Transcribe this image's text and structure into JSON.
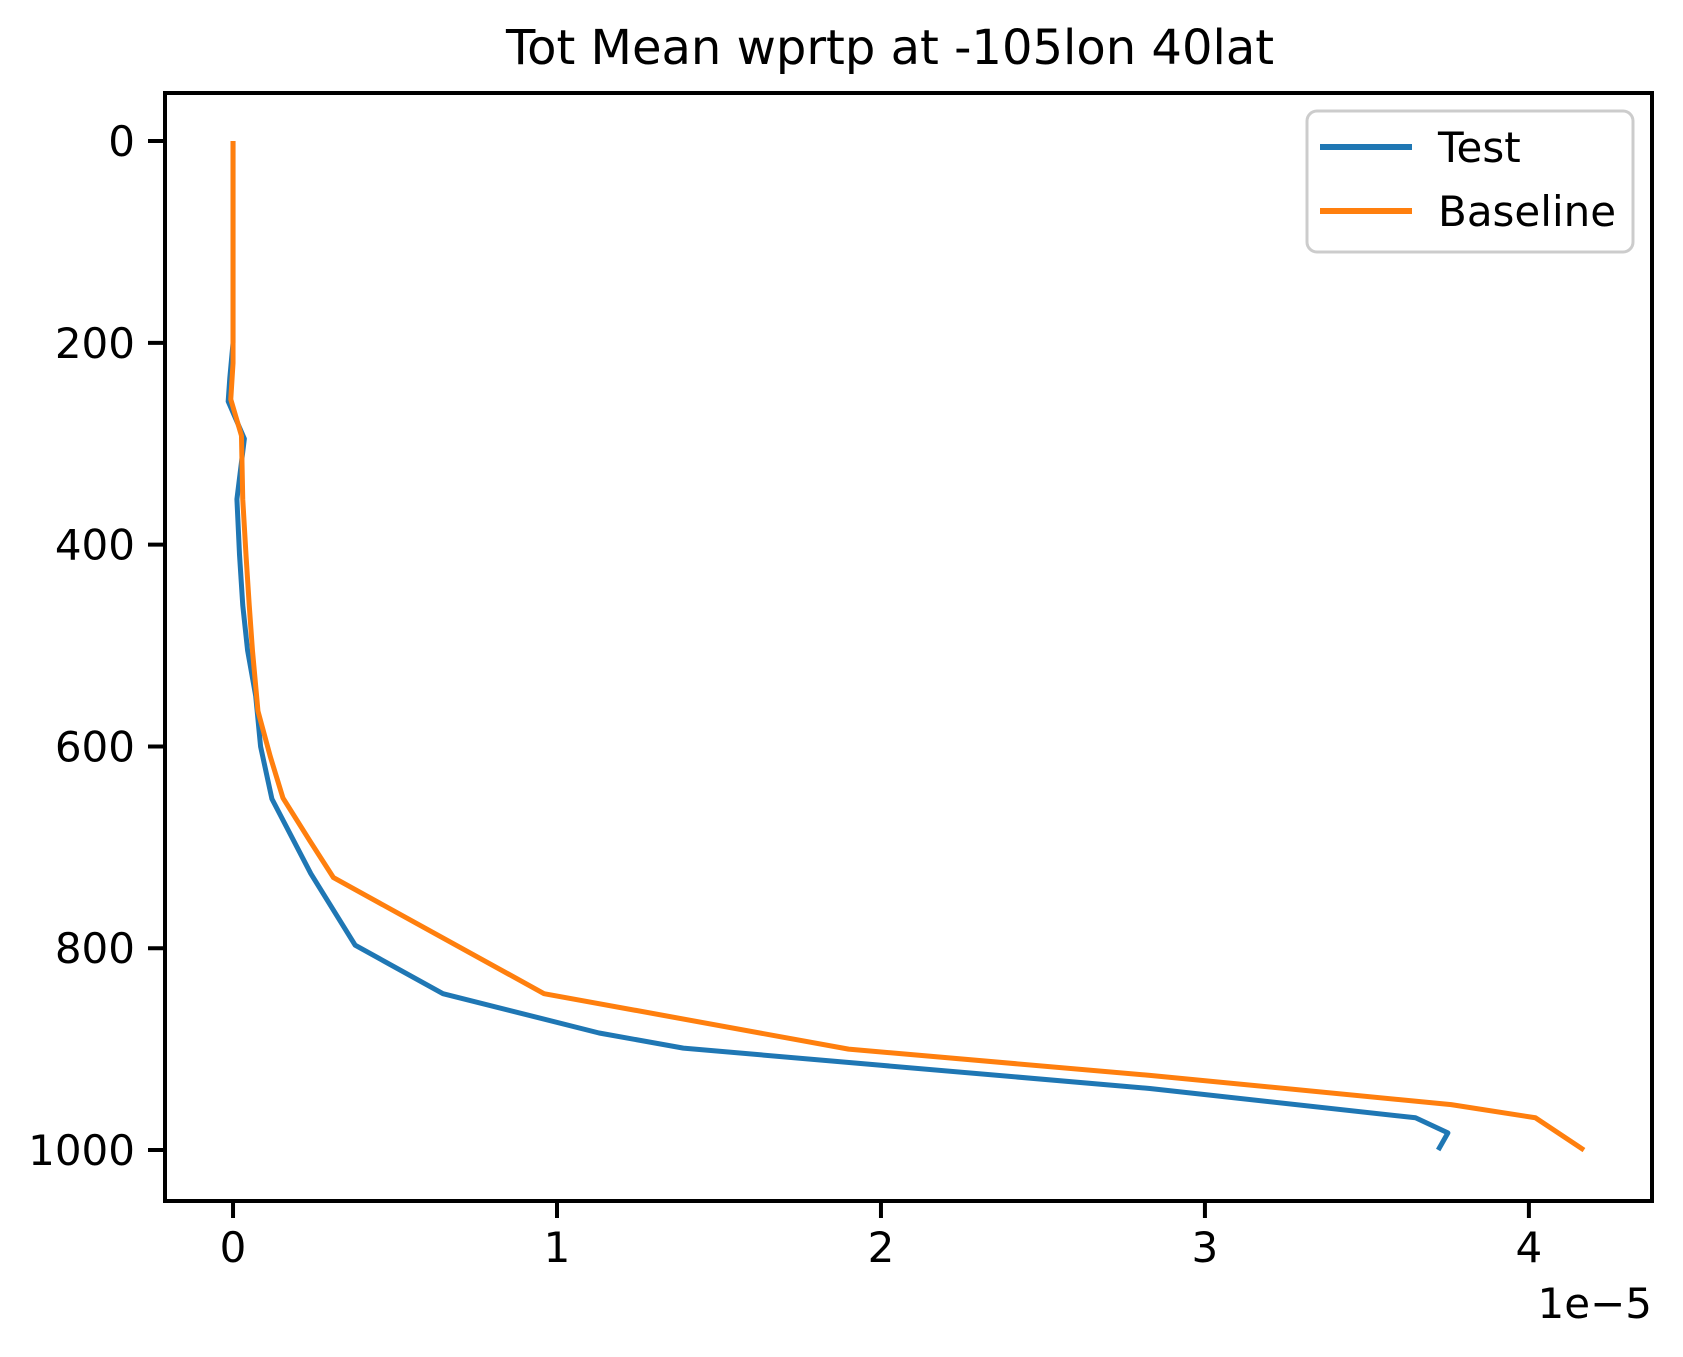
{
  "figure": {
    "background": "#ffffff"
  },
  "chart_data": {
    "type": "line",
    "title": "Tot Mean wprtp at -105lon 40lat",
    "xlabel": "",
    "ylabel": "",
    "x_offset_label": "1e−5",
    "x_value_scale": "1e-5",
    "grid": false,
    "legend_position": "upper right",
    "y_axis_inverted": true,
    "x_ticks": [
      0,
      1,
      2,
      3,
      4
    ],
    "x_tick_labels": [
      "0",
      "1",
      "2",
      "3",
      "4"
    ],
    "y_ticks": [
      0,
      200,
      400,
      600,
      800,
      1000
    ],
    "y_tick_labels": [
      "0",
      "200",
      "400",
      "600",
      "800",
      "1000"
    ],
    "xlim": [
      -0.21,
      4.38
    ],
    "ylim_top": -47.6,
    "ylim_bottom": 1050.5,
    "series": [
      {
        "name": "Test",
        "color": "#1f77b4",
        "points": [
          [
            0.0,
            0
          ],
          [
            0.0,
            100
          ],
          [
            0.0,
            200
          ],
          [
            -0.01,
            235
          ],
          [
            -0.015,
            258
          ],
          [
            0.035,
            295
          ],
          [
            0.012,
            355
          ],
          [
            0.02,
            410
          ],
          [
            0.03,
            460
          ],
          [
            0.045,
            505
          ],
          [
            0.07,
            550
          ],
          [
            0.085,
            600
          ],
          [
            0.12,
            652
          ],
          [
            0.24,
            726
          ],
          [
            0.377,
            797
          ],
          [
            0.648,
            845
          ],
          [
            1.13,
            884
          ],
          [
            1.39,
            899
          ],
          [
            2.0,
            916
          ],
          [
            2.83,
            939
          ],
          [
            3.65,
            968
          ],
          [
            3.75,
            983
          ],
          [
            3.72,
            1000
          ]
        ]
      },
      {
        "name": "Baseline",
        "color": "#ff7f0e",
        "points": [
          [
            0.0,
            0
          ],
          [
            0.0,
            100
          ],
          [
            0.0,
            220
          ],
          [
            -0.007,
            256
          ],
          [
            0.026,
            292
          ],
          [
            0.03,
            355
          ],
          [
            0.04,
            410
          ],
          [
            0.05,
            460
          ],
          [
            0.06,
            505
          ],
          [
            0.077,
            565
          ],
          [
            0.115,
            610
          ],
          [
            0.154,
            651
          ],
          [
            0.238,
            694
          ],
          [
            0.31,
            730
          ],
          [
            0.96,
            845
          ],
          [
            1.9,
            900
          ],
          [
            2.83,
            926
          ],
          [
            3.76,
            955
          ],
          [
            4.02,
            968
          ],
          [
            4.17,
            1000
          ]
        ]
      }
    ]
  },
  "legend": {
    "items": [
      {
        "label": "Test",
        "color": "#1f77b4"
      },
      {
        "label": "Baseline",
        "color": "#ff7f0e"
      }
    ]
  }
}
